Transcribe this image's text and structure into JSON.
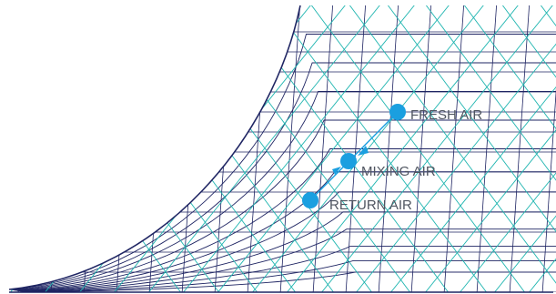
{
  "colors": {
    "navy": "#1f2563",
    "teal": "#1fb5b0",
    "accent": "#1a9fe0",
    "label": "#4f5560"
  },
  "points": {
    "fresh": {
      "label": "FRESH AIR"
    },
    "mixing": {
      "label": "MIXING AIR"
    },
    "return": {
      "label": "RETURN AIR"
    }
  }
}
